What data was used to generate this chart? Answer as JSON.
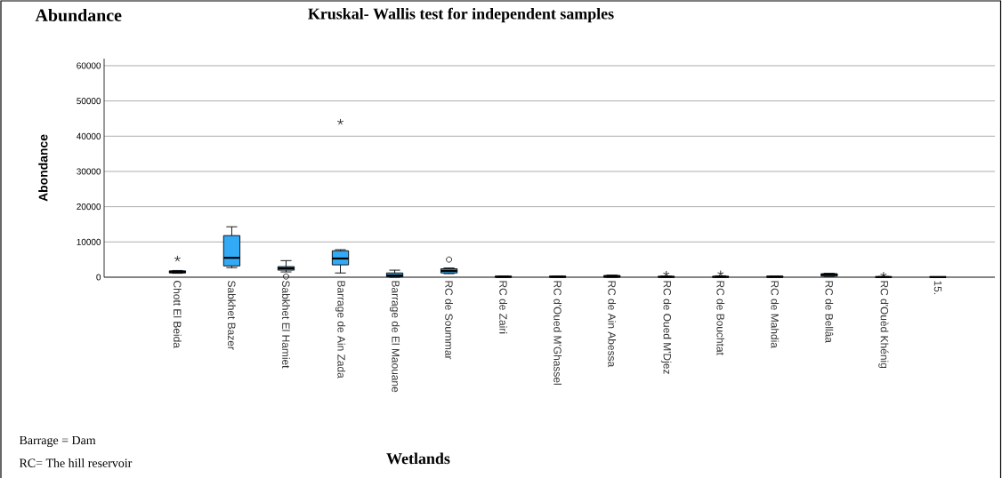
{
  "chart_data": {
    "type": "box",
    "title": "Kruskal- Wallis test for independent samples",
    "xlabel": "Wetlands",
    "ylabel": "Abondance",
    "annotations": [
      "Abundance",
      "Barrage = Dam",
      "RC= The hill reservoir"
    ],
    "categories": [
      "Chott  El Beida",
      "Sabkhet  Bazer",
      "Sabkhet El Hamiet",
      "Barrage de   Ain Zada",
      "Barrage de El Maouane",
      "RC de Soummar",
      "RC de Zairi",
      "RC d'Oued M'Ghassel",
      "RC  de   Ain  Abessa",
      "RC de Oued M'Djez",
      "RC de Bouchtat",
      "RC de Mahdia",
      "RC de Bellâa",
      "RC d'Ouèd Khénig",
      "15."
    ],
    "color": "#33aaf5",
    "ylim": [
      0,
      62000
    ],
    "yticks": [
      0,
      10000,
      20000,
      30000,
      40000,
      50000,
      60000
    ],
    "grid": "y",
    "boxes": [
      {
        "low": 1100,
        "q1": 1200,
        "median": 1500,
        "q3": 1800,
        "high": 1900,
        "outliers": [
          5200
        ]
      },
      {
        "low": 2700,
        "q1": 3200,
        "median": 5500,
        "q3": 11800,
        "high": 14300
      },
      {
        "low": 1500,
        "q1": 2000,
        "median": 2500,
        "q3": 3000,
        "high": 4700,
        "outliers": [
          200
        ]
      },
      {
        "low": 1200,
        "q1": 3500,
        "median": 5300,
        "q3": 7500,
        "high": 7800,
        "outliers": [
          44000
        ]
      },
      {
        "low": 0,
        "q1": 100,
        "median": 500,
        "q3": 1200,
        "high": 2000
      },
      {
        "low": 1000,
        "q1": 1200,
        "median": 1800,
        "q3": 2400,
        "high": 2600,
        "outliers": [
          5000
        ]
      },
      {
        "low": 0,
        "q1": 0,
        "median": 100,
        "q3": 300,
        "high": 300
      },
      {
        "low": 0,
        "q1": 0,
        "median": 100,
        "q3": 300,
        "high": 300
      },
      {
        "low": 0,
        "q1": 0,
        "median": 200,
        "q3": 500,
        "high": 600
      },
      {
        "low": 0,
        "q1": 0,
        "median": 100,
        "q3": 200,
        "high": 300,
        "outliers": [
          900
        ]
      },
      {
        "low": 0,
        "q1": 0,
        "median": 100,
        "q3": 200,
        "high": 400,
        "outliers": [
          1000
        ]
      },
      {
        "low": 0,
        "q1": 0,
        "median": 100,
        "q3": 300,
        "high": 300
      },
      {
        "low": 200,
        "q1": 300,
        "median": 700,
        "q3": 1000,
        "high": 1100
      },
      {
        "low": 0,
        "q1": 0,
        "median": 50,
        "q3": 100,
        "high": 200,
        "outliers": [
          600
        ]
      },
      {
        "low": 0,
        "q1": 0,
        "median": 50,
        "q3": 100,
        "high": 100
      }
    ]
  }
}
